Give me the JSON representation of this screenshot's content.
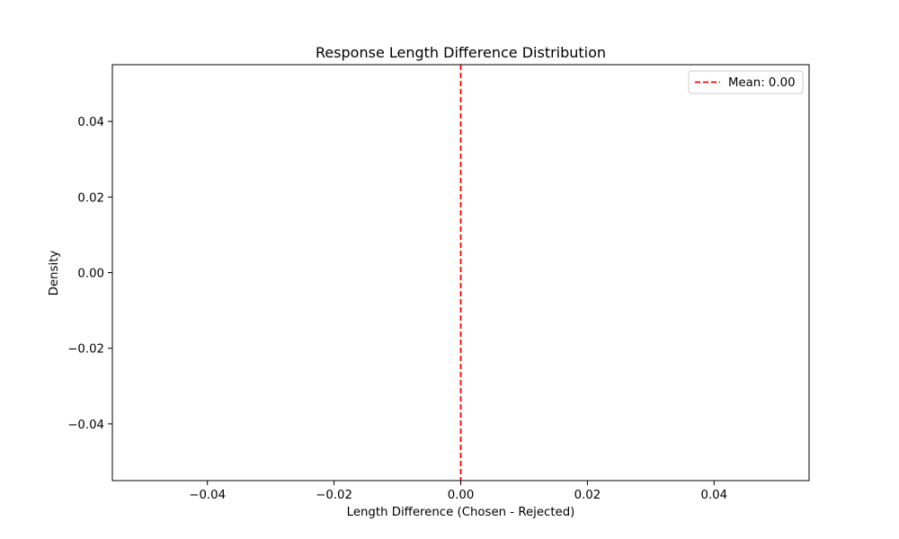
{
  "chart_data": {
    "type": "line",
    "title": "Response Length Difference Distribution",
    "xlabel": "Length Difference (Chosen - Rejected)",
    "ylabel": "Density",
    "xlim": [
      -0.055,
      0.055
    ],
    "ylim": [
      -0.055,
      0.055
    ],
    "x_ticks": [
      -0.04,
      -0.02,
      0.0,
      0.02,
      0.04
    ],
    "x_tick_labels": [
      "−0.04",
      "−0.02",
      "0.00",
      "0.02",
      "0.04"
    ],
    "y_ticks": [
      -0.04,
      -0.02,
      0.0,
      0.02,
      0.04
    ],
    "y_tick_labels": [
      "−0.04",
      "−0.02",
      "0.00",
      "0.02",
      "0.04"
    ],
    "grid": false,
    "series": [],
    "vlines": [
      {
        "name": "Mean: 0.00",
        "x": 0.0,
        "color": "#ff0000",
        "style": "dashed"
      }
    ],
    "legend": {
      "placement": "top-right",
      "entries": [
        "Mean: 0.00"
      ]
    }
  }
}
